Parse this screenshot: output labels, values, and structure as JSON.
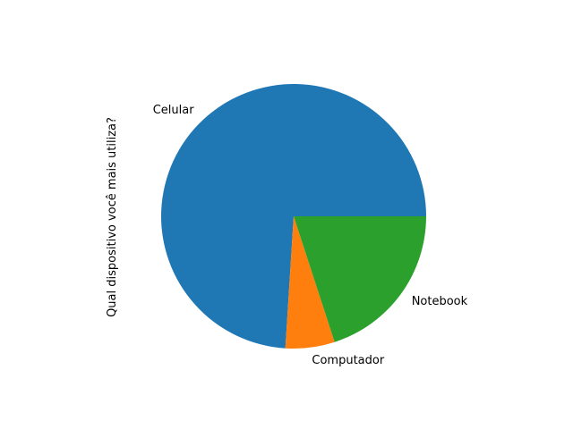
{
  "chart_data": {
    "type": "pie",
    "title": "",
    "ylabel": "Qual dispositivo você mais utiliza?",
    "start_angle_deg": 0,
    "direction": "counterclockwise",
    "slices": [
      {
        "label": "Celular",
        "value": 74,
        "color": "#1f77b4"
      },
      {
        "label": "Computador",
        "value": 6,
        "color": "#ff7f0e"
      },
      {
        "label": "Notebook",
        "value": 20,
        "color": "#2ca02c"
      }
    ]
  }
}
